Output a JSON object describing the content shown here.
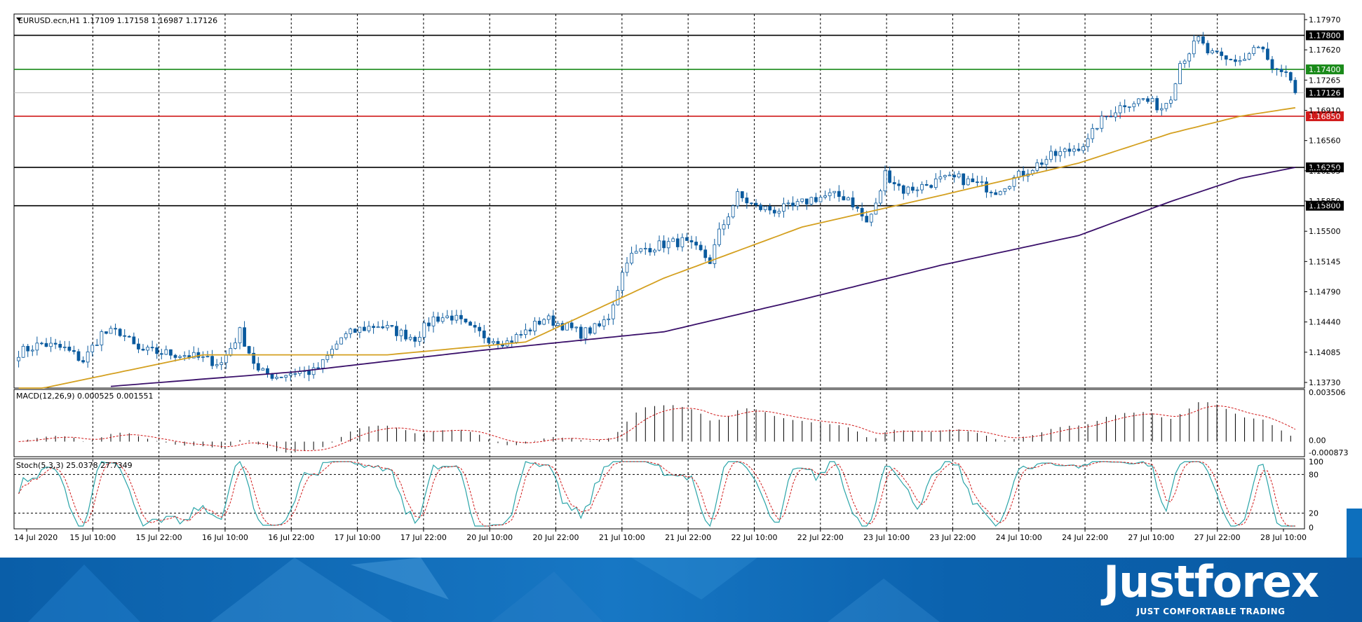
{
  "chart_data": {
    "type": "candlestick",
    "symbol_info": "EURUSD.ecn,H1  1.17109 1.17158 1.16987 1.17126",
    "price_axis": {
      "ticks": [
        "1.17970",
        "1.17620",
        "1.17265",
        "1.16910",
        "1.16560",
        "1.16205",
        "1.15850",
        "1.15500",
        "1.15145",
        "1.14790",
        "1.14440",
        "1.14085",
        "1.13730"
      ],
      "range": [
        1.1366,
        1.1805
      ]
    },
    "time_axis": {
      "labels": [
        "14 Jul 2020",
        "15 Jul 10:00",
        "15 Jul 22:00",
        "16 Jul 10:00",
        "16 Jul 22:00",
        "17 Jul 10:00",
        "17 Jul 22:00",
        "20 Jul 10:00",
        "20 Jul 22:00",
        "21 Jul 10:00",
        "21 Jul 22:00",
        "22 Jul 10:00",
        "22 Jul 22:00",
        "23 Jul 10:00",
        "23 Jul 22:00",
        "24 Jul 10:00",
        "24 Jul 22:00",
        "27 Jul 10:00",
        "27 Jul 22:00",
        "28 Jul 10:00"
      ]
    },
    "horizontal_levels": [
      {
        "price": 1.178,
        "label": "1.17800",
        "color": "#000000"
      },
      {
        "price": 1.174,
        "label": "1.17400",
        "color": "#1a8a1a"
      },
      {
        "price": 1.1685,
        "label": "1.16850",
        "color": "#d11a1a"
      },
      {
        "price": 1.1625,
        "label": "1.16250",
        "color": "#000000"
      },
      {
        "price": 1.158,
        "label": "1.15800",
        "color": "#000000"
      }
    ],
    "current_price": {
      "price": 1.17126,
      "label": "1.17126"
    },
    "anchors": [
      [
        0,
        1.1408
      ],
      [
        5,
        1.1418
      ],
      [
        10,
        1.1412
      ],
      [
        14,
        1.1398
      ],
      [
        18,
        1.143
      ],
      [
        22,
        1.1432
      ],
      [
        26,
        1.141
      ],
      [
        30,
        1.1408
      ],
      [
        36,
        1.1405
      ],
      [
        40,
        1.14
      ],
      [
        44,
        1.1395
      ],
      [
        48,
        1.1432
      ],
      [
        52,
        1.1385
      ],
      [
        56,
        1.138
      ],
      [
        60,
        1.1385
      ],
      [
        64,
        1.1385
      ],
      [
        66,
        1.1395
      ],
      [
        70,
        1.1425
      ],
      [
        74,
        1.1435
      ],
      [
        78,
        1.144
      ],
      [
        82,
        1.1432
      ],
      [
        86,
        1.1425
      ],
      [
        90,
        1.1448
      ],
      [
        94,
        1.145
      ],
      [
        98,
        1.1435
      ],
      [
        102,
        1.1425
      ],
      [
        106,
        1.142
      ],
      [
        110,
        1.1432
      ],
      [
        114,
        1.1448
      ],
      [
        118,
        1.144
      ],
      [
        122,
        1.143
      ],
      [
        126,
        1.1438
      ],
      [
        128,
        1.145
      ],
      [
        132,
        1.1518
      ],
      [
        136,
        1.153
      ],
      [
        140,
        1.1535
      ],
      [
        144,
        1.1538
      ],
      [
        148,
        1.1525
      ],
      [
        150,
        1.1515
      ],
      [
        152,
        1.1548
      ],
      [
        156,
        1.1592
      ],
      [
        160,
        1.1578
      ],
      [
        164,
        1.1575
      ],
      [
        168,
        1.1578
      ],
      [
        172,
        1.1588
      ],
      [
        176,
        1.1592
      ],
      [
        180,
        1.159
      ],
      [
        184,
        1.156
      ],
      [
        186,
        1.158
      ],
      [
        188,
        1.1618
      ],
      [
        192,
        1.1598
      ],
      [
        196,
        1.1603
      ],
      [
        200,
        1.161
      ],
      [
        204,
        1.1612
      ],
      [
        208,
        1.1605
      ],
      [
        212,
        1.1598
      ],
      [
        216,
        1.1612
      ],
      [
        220,
        1.1625
      ],
      [
        224,
        1.1638
      ],
      [
        228,
        1.1645
      ],
      [
        232,
        1.1655
      ],
      [
        234,
        1.1675
      ],
      [
        236,
        1.1685
      ],
      [
        240,
        1.17
      ],
      [
        244,
        1.1705
      ],
      [
        248,
        1.1695
      ],
      [
        250,
        1.171
      ],
      [
        252,
        1.1748
      ],
      [
        256,
        1.1775
      ],
      [
        258,
        1.176
      ],
      [
        262,
        1.175
      ],
      [
        266,
        1.1752
      ],
      [
        268,
        1.1765
      ],
      [
        270,
        1.1762
      ],
      [
        272,
        1.1738
      ],
      [
        276,
        1.1728
      ],
      [
        277,
        1.17126
      ]
    ],
    "ma_fast": [
      [
        0,
        1.136
      ],
      [
        40,
        1.1405
      ],
      [
        80,
        1.1405
      ],
      [
        110,
        1.142
      ],
      [
        140,
        1.1495
      ],
      [
        170,
        1.1555
      ],
      [
        200,
        1.1592
      ],
      [
        230,
        1.163
      ],
      [
        250,
        1.1665
      ],
      [
        265,
        1.1685
      ],
      [
        277,
        1.1695
      ]
    ],
    "ma_slow": [
      [
        20,
        1.1368
      ],
      [
        60,
        1.1385
      ],
      [
        100,
        1.141
      ],
      [
        140,
        1.1432
      ],
      [
        170,
        1.147
      ],
      [
        200,
        1.151
      ],
      [
        230,
        1.1545
      ],
      [
        250,
        1.1585
      ],
      [
        265,
        1.1612
      ],
      [
        277,
        1.1625
      ]
    ],
    "macd": {
      "label": "MACD(12,26,9) 0.000525 0.001551",
      "ticks": [
        "0.003506",
        "0.00",
        "-0.000873"
      ]
    },
    "stoch": {
      "label": "Stoch(5,3,3) 25.0378 27.7349",
      "ticks": [
        "100",
        "80",
        "20",
        "0"
      ],
      "levels": [
        80,
        20
      ]
    },
    "colors": {
      "bull": "#ffffff",
      "bear": "#0a5a9e",
      "candle_border": "#0a5a9e",
      "ma_fast": "#d4a020",
      "ma_slow": "#3a106a",
      "macd_bar": "#000000",
      "macd_signal": "#d11a1a",
      "stoch_main": "#2aa4a8",
      "stoch_signal": "#d11a1a",
      "grid": "#000000"
    }
  },
  "branding": {
    "name": "Justforex",
    "tagline": "JUST COMFORTABLE TRADING"
  }
}
